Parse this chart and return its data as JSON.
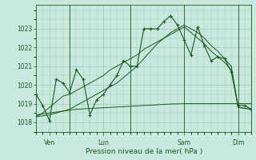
{
  "bg_color": "#c8e8e0",
  "grid_color": "#a0c8b8",
  "line_color": "#1a5c1a",
  "xlabel": "Pression niveau de la mer( hPa )",
  "ylim": [
    1017.5,
    1024.3
  ],
  "yticks": [
    1018,
    1019,
    1020,
    1021,
    1022,
    1023
  ],
  "day_labels": [
    "Ven",
    "Lun",
    "Sam",
    "Dim"
  ],
  "day_positions": [
    2,
    10,
    22,
    30
  ],
  "vline_positions": [
    5,
    14,
    22,
    30
  ],
  "line1_x": [
    0,
    1,
    2,
    3,
    4,
    5,
    6,
    7,
    8,
    9,
    10,
    11,
    12,
    13,
    14,
    15,
    16,
    17,
    18,
    19,
    20,
    21,
    22,
    23,
    24,
    25,
    26,
    27,
    28,
    29,
    30,
    31,
    32
  ],
  "line1_y": [
    1019.5,
    1018.9,
    1018.1,
    1020.3,
    1020.1,
    1019.6,
    1020.8,
    1020.3,
    1018.4,
    1019.2,
    1019.5,
    1020.0,
    1020.5,
    1021.3,
    1021.0,
    1021.0,
    1023.0,
    1023.0,
    1023.0,
    1023.4,
    1023.7,
    1023.2,
    1022.4,
    1021.6,
    1023.1,
    1022.1,
    1021.3,
    1021.5,
    1021.4,
    1020.7,
    1018.9,
    1018.9,
    1018.7
  ],
  "line2_y": [
    1018.4,
    1018.45,
    1018.5,
    1018.55,
    1018.6,
    1018.65,
    1018.7,
    1018.72,
    1018.74,
    1018.76,
    1018.78,
    1018.8,
    1018.82,
    1018.84,
    1018.86,
    1018.88,
    1018.9,
    1018.92,
    1018.94,
    1018.96,
    1018.98,
    1018.99,
    1019.0,
    1019.0,
    1019.0,
    1019.0,
    1019.0,
    1019.0,
    1019.0,
    1019.0,
    1019.0,
    1019.0,
    1019.0
  ],
  "line3_y": [
    1018.3,
    1018.5,
    1018.8,
    1019.1,
    1019.4,
    1019.5,
    1019.7,
    1019.9,
    1020.1,
    1020.3,
    1020.5,
    1020.8,
    1021.0,
    1021.2,
    1021.4,
    1021.6,
    1021.9,
    1022.1,
    1022.3,
    1022.5,
    1022.7,
    1022.9,
    1023.1,
    1022.8,
    1022.5,
    1022.2,
    1021.8,
    1021.5,
    1021.2,
    1020.8,
    1018.8,
    1018.75,
    1018.7
  ],
  "line4_y": [
    1018.3,
    1018.35,
    1018.4,
    1018.5,
    1018.6,
    1018.7,
    1018.9,
    1019.1,
    1019.3,
    1019.5,
    1019.7,
    1019.9,
    1020.1,
    1020.4,
    1020.7,
    1021.0,
    1021.4,
    1021.8,
    1022.2,
    1022.5,
    1022.8,
    1023.0,
    1023.2,
    1023.0,
    1022.8,
    1022.5,
    1022.1,
    1021.8,
    1021.4,
    1021.0,
    1018.8,
    1018.75,
    1018.7
  ]
}
